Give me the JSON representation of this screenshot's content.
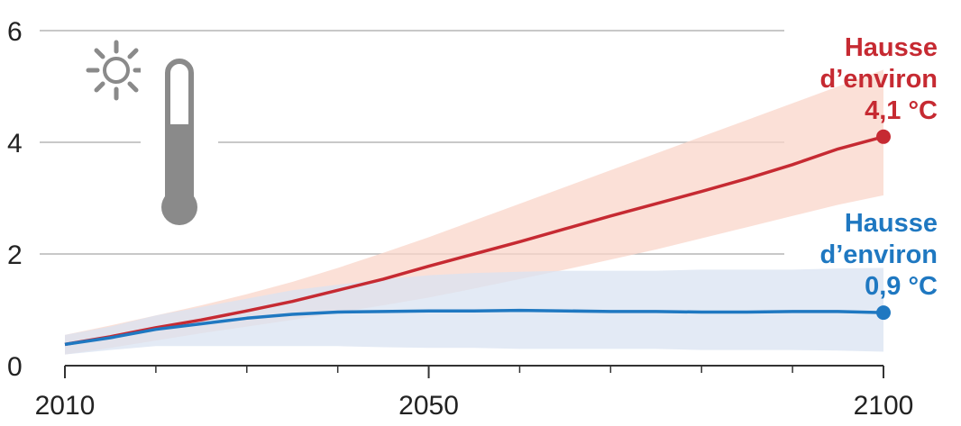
{
  "chart_data": {
    "type": "line",
    "title": "",
    "xlabel": "",
    "ylabel": "",
    "xlim": [
      2010,
      2100
    ],
    "ylim": [
      0,
      6
    ],
    "grid": "horizontal",
    "x_ticks": [
      2010,
      2050,
      2100
    ],
    "y_ticks": [
      0,
      2,
      4,
      6
    ],
    "x_tick_labels": [
      "2010",
      "2050",
      "2100"
    ],
    "y_tick_labels": [
      "0",
      "2",
      "4",
      "6"
    ],
    "series": [
      {
        "color": "#c62a32",
        "band_color": "#f9d6ca",
        "x": [
          2010,
          2015,
          2020,
          2025,
          2030,
          2035,
          2040,
          2045,
          2050,
          2055,
          2060,
          2065,
          2070,
          2075,
          2080,
          2085,
          2090,
          2095,
          2100
        ],
        "values": [
          0.38,
          0.52,
          0.68,
          0.82,
          0.98,
          1.15,
          1.35,
          1.55,
          1.78,
          2.0,
          2.22,
          2.45,
          2.68,
          2.9,
          3.12,
          3.35,
          3.6,
          3.88,
          4.1
        ],
        "upper": [
          0.55,
          0.72,
          0.9,
          1.08,
          1.28,
          1.5,
          1.75,
          2.02,
          2.3,
          2.6,
          2.9,
          3.2,
          3.5,
          3.8,
          4.1,
          4.4,
          4.7,
          5.0,
          5.3
        ],
        "lower": [
          0.2,
          0.32,
          0.45,
          0.58,
          0.7,
          0.82,
          0.95,
          1.08,
          1.22,
          1.38,
          1.55,
          1.72,
          1.9,
          2.08,
          2.28,
          2.48,
          2.68,
          2.88,
          3.05
        ],
        "end_label": [
          "Hausse",
          "d’environ",
          "4,1 °C"
        ]
      },
      {
        "color": "#1f78c1",
        "band_color": "#d9e3f1",
        "x": [
          2010,
          2015,
          2020,
          2025,
          2030,
          2035,
          2040,
          2045,
          2050,
          2055,
          2060,
          2065,
          2070,
          2075,
          2080,
          2085,
          2090,
          2095,
          2100
        ],
        "values": [
          0.38,
          0.5,
          0.65,
          0.75,
          0.85,
          0.92,
          0.96,
          0.97,
          0.98,
          0.98,
          0.99,
          0.98,
          0.97,
          0.97,
          0.96,
          0.96,
          0.97,
          0.97,
          0.95
        ],
        "upper": [
          0.55,
          0.7,
          0.9,
          1.05,
          1.2,
          1.35,
          1.45,
          1.55,
          1.62,
          1.66,
          1.68,
          1.7,
          1.7,
          1.7,
          1.72,
          1.72,
          1.72,
          1.74,
          1.75
        ],
        "lower": [
          0.2,
          0.28,
          0.35,
          0.35,
          0.35,
          0.35,
          0.35,
          0.33,
          0.32,
          0.32,
          0.3,
          0.3,
          0.3,
          0.3,
          0.28,
          0.28,
          0.28,
          0.27,
          0.25
        ],
        "end_label": [
          "Hausse",
          "d’environ",
          "0,9 °C"
        ]
      }
    ]
  },
  "icons": {
    "sun": "sun-icon",
    "thermometer": "thermometer-icon",
    "icon_color": "#8a8a8a"
  }
}
